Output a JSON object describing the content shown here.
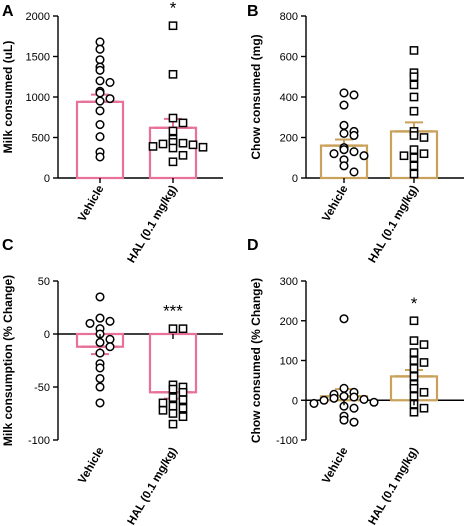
{
  "chart_data": [
    {
      "panel": "A",
      "type": "bar",
      "ylabel": "Milk consumed (uL)",
      "ylim": [
        0,
        2000
      ],
      "yticks": [
        0,
        500,
        1000,
        1500,
        2000
      ],
      "categories": [
        "Vehicle",
        "HAL (0.1 mg/kg)"
      ],
      "bar_color": "#e8719b",
      "means": [
        940,
        620
      ],
      "sem": [
        90,
        110
      ],
      "significance": [
        "",
        "*"
      ],
      "points": [
        [
          1680,
          1590,
          1460,
          1370,
          1330,
          1200,
          1180,
          1070,
          1050,
          980,
          950,
          830,
          660,
          510,
          320,
          260
        ],
        [
          1880,
          1280,
          740,
          680,
          580,
          480,
          440,
          430,
          420,
          410,
          390,
          380,
          370,
          280,
          200
        ]
      ]
    },
    {
      "panel": "B",
      "type": "bar",
      "ylabel": "Chow consumed (mg)",
      "ylim": [
        0,
        800
      ],
      "yticks": [
        0,
        200,
        400,
        600,
        800
      ],
      "categories": [
        "Vehicle",
        "HAL (0.1 mg/kg)"
      ],
      "bar_color": "#c9a15a",
      "means": [
        160,
        230
      ],
      "sem": [
        30,
        45
      ],
      "significance": [
        "",
        ""
      ],
      "points": [
        [
          420,
          410,
          360,
          260,
          230,
          220,
          210,
          150,
          140,
          130,
          120,
          110,
          90,
          60,
          30
        ],
        [
          630,
          520,
          500,
          460,
          400,
          330,
          230,
          210,
          200,
          140,
          120,
          110,
          100,
          60,
          20
        ]
      ]
    },
    {
      "panel": "C",
      "type": "bar",
      "ylabel": "Milk consumption (% Change)",
      "ylim": [
        -100,
        50
      ],
      "yticks": [
        -100,
        -50,
        0,
        50
      ],
      "categories": [
        "Vehicle",
        "HAL (0.1 mg/kg)"
      ],
      "bar_color": "#e8719b",
      "means": [
        -12,
        -55
      ],
      "sem": [
        7,
        6
      ],
      "significance": [
        "",
        "***"
      ],
      "points": [
        [
          35,
          15,
          12,
          10,
          5,
          0,
          -5,
          -8,
          -12,
          -18,
          -28,
          -32,
          -42,
          -50,
          -65
        ],
        [
          5,
          5,
          -48,
          -50,
          -52,
          -55,
          -60,
          -62,
          -65,
          -68,
          -70,
          -72,
          -75,
          -78,
          -85
        ]
      ]
    },
    {
      "panel": "D",
      "type": "bar",
      "ylabel": "Chow consumed (% Change)",
      "ylim": [
        -100,
        300
      ],
      "yticks": [
        -100,
        0,
        100,
        200,
        300
      ],
      "categories": [
        "Vehicle",
        "HAL (0.1 mg/kg)"
      ],
      "bar_color": "#c9a15a",
      "means": [
        10,
        60
      ],
      "sem": [
        18,
        16
      ],
      "significance": [
        "",
        "*"
      ],
      "points": [
        [
          205,
          30,
          20,
          15,
          10,
          8,
          5,
          2,
          0,
          -5,
          -8,
          -15,
          -20,
          -40,
          -50,
          -55
        ],
        [
          200,
          150,
          140,
          120,
          100,
          95,
          80,
          60,
          40,
          30,
          20,
          10,
          -10,
          -20,
          -30
        ]
      ]
    }
  ]
}
